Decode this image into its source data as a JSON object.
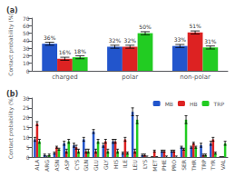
{
  "chart_data": [
    {
      "type": "bar",
      "title": "(a)",
      "ylabel": "Contact probability (%)",
      "categories": [
        "charged",
        "polar",
        "non-polar"
      ],
      "series": [
        {
          "color": "#2255cc",
          "values": [
            36,
            32,
            33
          ],
          "errors": [
            2,
            2,
            2
          ],
          "value_labels": [
            "36%",
            "32%",
            "33%"
          ]
        },
        {
          "color": "#dd2222",
          "values": [
            16,
            32,
            51
          ],
          "errors": [
            2,
            2,
            2
          ],
          "value_labels": [
            "16%",
            "32%",
            "51%"
          ]
        },
        {
          "color": "#22cc22",
          "values": [
            18,
            50,
            31
          ],
          "errors": [
            2,
            2,
            2
          ],
          "value_labels": [
            "18%",
            "50%",
            "31%"
          ]
        }
      ],
      "ylim": [
        0,
        70
      ],
      "yticks": [
        0,
        10,
        20,
        30,
        40,
        50,
        60,
        70
      ],
      "grid": false,
      "data_labels": true
    },
    {
      "type": "bar",
      "title": "(b)",
      "ylabel": "Contact probability (%)",
      "categories": [
        "ALA",
        "ARG",
        "ASN",
        "ASP",
        "CYS",
        "GLN",
        "GLU",
        "GLY",
        "HIS",
        "ILE",
        "LEU",
        "LYS",
        "MET",
        "PHE",
        "PRO",
        "SER",
        "THR",
        "TRP",
        "TYR",
        "VAL"
      ],
      "series": [
        {
          "name": "MB",
          "color": "#2255cc",
          "values": [
            9,
            1,
            2,
            7,
            6,
            9,
            13,
            6,
            8,
            2,
            23,
            1,
            0,
            3,
            3,
            5,
            5,
            6,
            7,
            0
          ],
          "errors": [
            1,
            0.5,
            0.5,
            1,
            1,
            1,
            1,
            1,
            1,
            0.5,
            2,
            0.5,
            0.2,
            0.5,
            0.5,
            0.5,
            0.5,
            1,
            1,
            0.2
          ]
        },
        {
          "name": "HB",
          "color": "#dd2222",
          "values": [
            17,
            0,
            5,
            3,
            5,
            3,
            3,
            8,
            8,
            9,
            3,
            1,
            3,
            3,
            3,
            4,
            7,
            1,
            9,
            0
          ],
          "errors": [
            1,
            0.5,
            0.5,
            1,
            1,
            1,
            1,
            1,
            1,
            1,
            1,
            0.5,
            0.5,
            0.5,
            0.5,
            0.5,
            0.5,
            0.5,
            1,
            0.2
          ]
        },
        {
          "name": "TRP",
          "color": "#22cc22",
          "values": [
            8,
            1,
            4,
            8,
            3,
            3,
            8,
            3,
            3,
            2,
            19,
            0,
            0,
            0,
            0,
            19,
            5,
            1,
            2,
            7
          ],
          "errors": [
            1,
            0.5,
            0.5,
            1,
            1,
            1,
            1,
            1,
            1,
            0.5,
            2,
            0.5,
            0.2,
            0.5,
            0.5,
            2,
            0.5,
            0.5,
            0.5,
            1
          ]
        }
      ],
      "ylim": [
        0,
        30
      ],
      "yticks": [
        0,
        5,
        10,
        15,
        20,
        25,
        30
      ],
      "grid": false,
      "legend": "upper right"
    }
  ]
}
